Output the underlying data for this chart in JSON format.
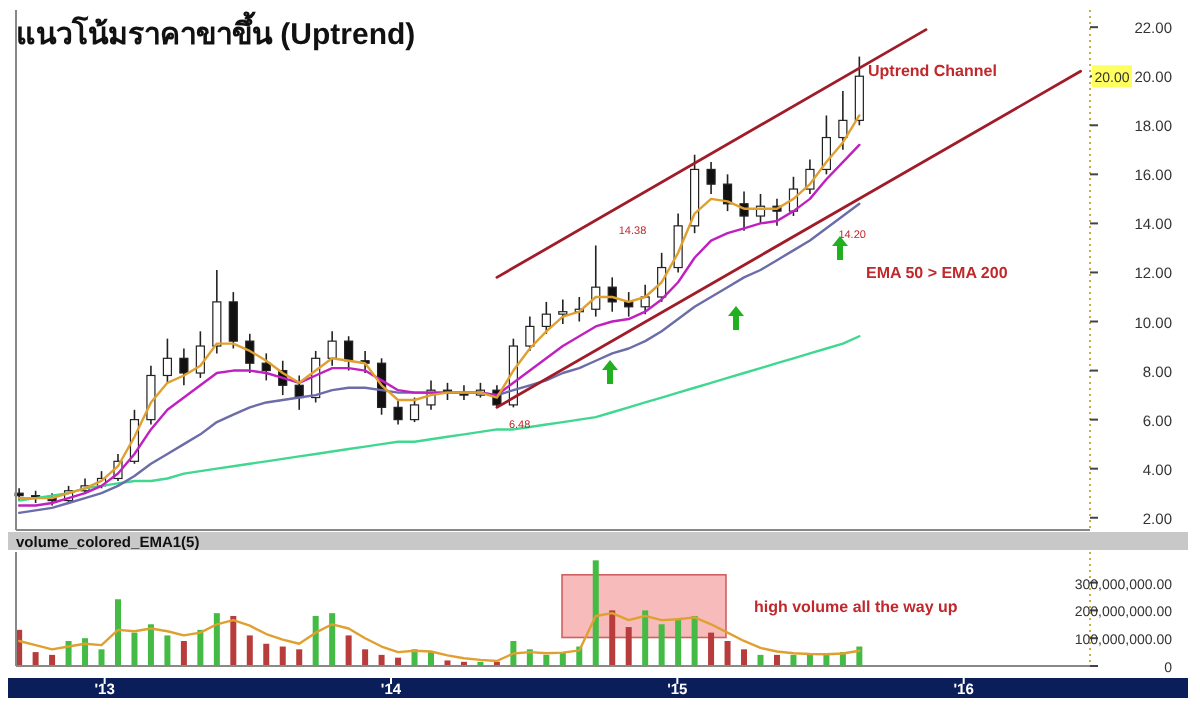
{
  "chart_data": [
    {
      "type": "candlestick",
      "title": "แนวโน้มราคาขาขึ้น (Uptrend)",
      "x": [
        "2012-09-14",
        "2012-10-05",
        "2012-10-26",
        "2012-11-16",
        "2012-12-07",
        "2012-12-28",
        "2013-01-18",
        "2013-02-08",
        "2013-03-01",
        "2013-03-22",
        "2013-04-12",
        "2013-05-03",
        "2013-05-24",
        "2013-06-14",
        "2013-07-05",
        "2013-07-26",
        "2013-08-16",
        "2013-09-06",
        "2013-09-27",
        "2013-10-18",
        "2013-11-08",
        "2013-11-29",
        "2013-12-20",
        "2014-01-10",
        "2014-01-31",
        "2014-02-21",
        "2014-03-14",
        "2014-04-04",
        "2014-04-25",
        "2014-05-16",
        "2014-06-06",
        "2014-06-27",
        "2014-07-18",
        "2014-08-08",
        "2014-08-29",
        "2014-09-19",
        "2014-10-10",
        "2014-10-31",
        "2014-11-21",
        "2014-12-12",
        "2015-01-02",
        "2015-01-23",
        "2015-02-13",
        "2015-03-06",
        "2015-03-27",
        "2015-04-17",
        "2015-05-08",
        "2015-05-29",
        "2015-06-19",
        "2015-07-10",
        "2015-07-31",
        "2015-08-21"
      ],
      "ohlc": [
        [
          3.0,
          3.2,
          2.7,
          2.9
        ],
        [
          2.9,
          3.1,
          2.6,
          2.8
        ],
        [
          2.8,
          3.0,
          2.5,
          2.7
        ],
        [
          2.7,
          3.3,
          2.6,
          3.1
        ],
        [
          3.1,
          3.6,
          3.0,
          3.3
        ],
        [
          3.3,
          3.9,
          3.2,
          3.6
        ],
        [
          3.6,
          4.6,
          3.5,
          4.3
        ],
        [
          4.3,
          6.4,
          4.2,
          6.0
        ],
        [
          6.0,
          8.2,
          5.8,
          7.8
        ],
        [
          7.8,
          9.3,
          7.5,
          8.5
        ],
        [
          8.5,
          8.9,
          7.4,
          7.9
        ],
        [
          7.9,
          9.6,
          7.7,
          9.0
        ],
        [
          9.0,
          12.1,
          8.7,
          10.8
        ],
        [
          10.8,
          11.2,
          8.9,
          9.2
        ],
        [
          9.2,
          9.5,
          7.9,
          8.3
        ],
        [
          8.3,
          8.7,
          7.6,
          8.0
        ],
        [
          8.0,
          8.4,
          7.0,
          7.4
        ],
        [
          7.4,
          7.8,
          6.4,
          6.9
        ],
        [
          6.9,
          8.8,
          6.7,
          8.5
        ],
        [
          8.5,
          9.6,
          8.2,
          9.2
        ],
        [
          9.2,
          9.4,
          8.0,
          8.4
        ],
        [
          8.4,
          8.8,
          7.9,
          8.3
        ],
        [
          8.3,
          8.5,
          6.2,
          6.5
        ],
        [
          6.5,
          6.8,
          5.8,
          6.0
        ],
        [
          6.0,
          6.9,
          5.9,
          6.6
        ],
        [
          6.6,
          7.6,
          6.4,
          7.2
        ],
        [
          7.2,
          7.5,
          6.8,
          7.1
        ],
        [
          7.1,
          7.4,
          6.8,
          7.0
        ],
        [
          7.0,
          7.5,
          6.9,
          7.2
        ],
        [
          7.2,
          7.4,
          6.48,
          6.6
        ],
        [
          6.6,
          9.3,
          6.5,
          9.0
        ],
        [
          9.0,
          10.2,
          8.8,
          9.8
        ],
        [
          9.8,
          10.8,
          9.5,
          10.3
        ],
        [
          10.3,
          10.9,
          9.9,
          10.4
        ],
        [
          10.4,
          11.0,
          10.0,
          10.5
        ],
        [
          10.5,
          13.1,
          10.2,
          11.4
        ],
        [
          11.4,
          11.8,
          10.4,
          10.8
        ],
        [
          10.8,
          11.2,
          10.2,
          10.6
        ],
        [
          10.6,
          11.5,
          10.3,
          11.0
        ],
        [
          11.0,
          12.8,
          10.8,
          12.2
        ],
        [
          12.2,
          14.4,
          12.0,
          13.9
        ],
        [
          13.9,
          16.8,
          13.6,
          16.2
        ],
        [
          16.2,
          16.5,
          15.2,
          15.6
        ],
        [
          15.6,
          16.0,
          14.5,
          14.8
        ],
        [
          14.8,
          15.3,
          13.7,
          14.3
        ],
        [
          14.3,
          15.2,
          14.0,
          14.7
        ],
        [
          14.7,
          15.0,
          13.9,
          14.5
        ],
        [
          14.5,
          15.9,
          14.3,
          15.4
        ],
        [
          15.4,
          16.6,
          15.2,
          16.2
        ],
        [
          16.2,
          18.4,
          16.0,
          17.5
        ],
        [
          17.5,
          19.4,
          17.0,
          18.2
        ],
        [
          18.2,
          20.8,
          18.0,
          20.0
        ]
      ],
      "series": [
        {
          "type": "line",
          "color": "#40d890",
          "values": [
            2.7,
            2.8,
            2.9,
            3.0,
            3.2,
            3.3,
            3.4,
            3.5,
            3.5,
            3.6,
            3.8,
            3.9,
            4.0,
            4.1,
            4.2,
            4.3,
            4.4,
            4.5,
            4.6,
            4.7,
            4.8,
            4.9,
            5.0,
            5.1,
            5.1,
            5.2,
            5.3,
            5.4,
            5.5,
            5.6,
            5.6,
            5.7,
            5.8,
            5.9,
            6.0,
            6.1,
            6.3,
            6.5,
            6.7,
            6.9,
            7.1,
            7.3,
            7.5,
            7.7,
            7.9,
            8.1,
            8.3,
            8.5,
            8.7,
            8.9,
            9.1,
            9.4
          ]
        },
        {
          "type": "line",
          "color": "#6c6ca8",
          "values": [
            2.2,
            2.3,
            2.4,
            2.6,
            2.8,
            3.0,
            3.3,
            3.7,
            4.2,
            4.6,
            5.0,
            5.4,
            5.9,
            6.2,
            6.5,
            6.7,
            6.8,
            6.9,
            7.0,
            7.2,
            7.3,
            7.3,
            7.2,
            7.1,
            7.1,
            7.1,
            7.1,
            7.1,
            7.1,
            7.0,
            7.2,
            7.4,
            7.6,
            7.9,
            8.1,
            8.4,
            8.7,
            8.9,
            9.2,
            9.6,
            10.1,
            10.6,
            11.0,
            11.4,
            11.8,
            12.1,
            12.5,
            12.9,
            13.3,
            13.8,
            14.3,
            14.8
          ]
        },
        {
          "type": "line",
          "color": "#c020c0",
          "values": [
            2.5,
            2.5,
            2.6,
            2.8,
            3.0,
            3.3,
            3.8,
            4.6,
            5.6,
            6.4,
            6.9,
            7.4,
            7.9,
            8.0,
            8.0,
            7.9,
            7.7,
            7.5,
            7.8,
            8.1,
            8.1,
            8.0,
            7.6,
            7.2,
            7.1,
            7.1,
            7.1,
            7.1,
            7.1,
            7.0,
            7.5,
            8.0,
            8.5,
            9.0,
            9.4,
            9.8,
            10.0,
            10.1,
            10.4,
            10.9,
            11.6,
            12.6,
            13.3,
            13.6,
            13.8,
            14.0,
            14.1,
            14.5,
            15.0,
            15.8,
            16.5,
            17.2
          ]
        },
        {
          "type": "line",
          "color": "#e0a030",
          "values": [
            2.8,
            2.8,
            2.8,
            3.0,
            3.2,
            3.5,
            4.1,
            5.3,
            6.7,
            7.5,
            7.8,
            8.2,
            9.1,
            9.1,
            8.8,
            8.4,
            7.9,
            7.5,
            8.0,
            8.5,
            8.4,
            8.3,
            7.4,
            6.8,
            6.8,
            7.0,
            7.1,
            7.1,
            7.1,
            6.9,
            8.0,
            8.9,
            9.6,
            10.2,
            10.4,
            11.0,
            11.0,
            10.8,
            11.0,
            11.6,
            12.8,
            14.4,
            15.0,
            14.9,
            14.6,
            14.6,
            14.6,
            15.0,
            15.6,
            16.5,
            17.3,
            18.4
          ]
        },
        {
          "type": "line",
          "color": "#a01c28",
          "x": [
            "2014-05-16",
            "2015-11-14"
          ],
          "values": [
            11.8,
            21.9
          ]
        },
        {
          "type": "line",
          "color": "#a01c28",
          "x": [
            "2014-05-16",
            "2016-05-29"
          ],
          "values": [
            6.5,
            20.2
          ]
        }
      ],
      "xlim": [
        "2012-09-10",
        "2016-06-10"
      ],
      "ylim": [
        1.5,
        22.7
      ],
      "yticks": [
        {
          "value": 2,
          "label": "2.00"
        },
        {
          "value": 4,
          "label": "4.00"
        },
        {
          "value": 6,
          "label": "6.00"
        },
        {
          "value": 8,
          "label": "8.00"
        },
        {
          "value": 10,
          "label": "10.00"
        },
        {
          "value": 12,
          "label": "12.00"
        },
        {
          "value": 14,
          "label": "14.00"
        },
        {
          "value": 16,
          "label": "16.00"
        },
        {
          "value": 18,
          "label": "18.00"
        },
        {
          "value": 20,
          "label": "20.00"
        },
        {
          "value": 22,
          "label": "22.00"
        }
      ],
      "tick_labels": "y",
      "annotations": [
        "Uptrend Channel",
        "EMA 50 > EMA 200",
        {
          "text": "14.38",
          "x": "2014-10-03",
          "y": 14.38
        },
        {
          "text": "6.48",
          "x": "2014-05-16",
          "y": 6.48
        },
        {
          "text": "14.20",
          "x": "2015-07-10",
          "y": 14.2
        },
        {
          "text": "20.00",
          "y": 20
        }
      ]
    },
    {
      "type": "bar",
      "title": "volume_colored_EMA1(5)",
      "x": [
        "2012-09-14",
        "2012-10-05",
        "2012-10-26",
        "2012-11-16",
        "2012-12-07",
        "2012-12-28",
        "2013-01-18",
        "2013-02-08",
        "2013-03-01",
        "2013-03-22",
        "2013-04-12",
        "2013-05-03",
        "2013-05-24",
        "2013-06-14",
        "2013-07-05",
        "2013-07-26",
        "2013-08-16",
        "2013-09-06",
        "2013-09-27",
        "2013-10-18",
        "2013-11-08",
        "2013-11-29",
        "2013-12-20",
        "2014-01-10",
        "2014-01-31",
        "2014-02-21",
        "2014-03-14",
        "2014-04-04",
        "2014-04-25",
        "2014-05-16",
        "2014-06-06",
        "2014-06-27",
        "2014-07-18",
        "2014-08-08",
        "2014-08-29",
        "2014-09-19",
        "2014-10-10",
        "2014-10-31",
        "2014-11-21",
        "2014-12-12",
        "2015-01-02",
        "2015-01-23",
        "2015-02-13",
        "2015-03-06",
        "2015-03-27",
        "2015-04-17",
        "2015-05-08",
        "2015-05-29",
        "2015-06-19",
        "2015-07-10",
        "2015-07-31",
        "2015-08-21"
      ],
      "series": [
        {
          "type": "bar",
          "colors": [
            "#b83c3c",
            "#b83c3c",
            "#b83c3c",
            "#44bb44",
            "#44bb44",
            "#44bb44",
            "#44bb44",
            "#44bb44",
            "#44bb44",
            "#44bb44",
            "#b83c3c",
            "#44bb44",
            "#44bb44",
            "#b83c3c",
            "#b83c3c",
            "#b83c3c",
            "#b83c3c",
            "#b83c3c",
            "#44bb44",
            "#44bb44",
            "#b83c3c",
            "#b83c3c",
            "#b83c3c",
            "#b83c3c",
            "#44bb44",
            "#44bb44",
            "#b83c3c",
            "#b83c3c",
            "#44bb44",
            "#b83c3c",
            "#44bb44",
            "#44bb44",
            "#44bb44",
            "#44bb44",
            "#44bb44",
            "#44bb44",
            "#b83c3c",
            "#b83c3c",
            "#44bb44",
            "#44bb44",
            "#44bb44",
            "#44bb44",
            "#b83c3c",
            "#b83c3c",
            "#b83c3c",
            "#44bb44",
            "#b83c3c",
            "#44bb44",
            "#44bb44",
            "#44bb44",
            "#44bb44",
            "#44bb44"
          ],
          "values": [
            130000000,
            50000000,
            40000000,
            90000000,
            100000000,
            60000000,
            240000000,
            120000000,
            150000000,
            110000000,
            90000000,
            130000000,
            190000000,
            180000000,
            110000000,
            80000000,
            70000000,
            60000000,
            180000000,
            190000000,
            110000000,
            60000000,
            40000000,
            30000000,
            60000000,
            50000000,
            20000000,
            15000000,
            15000000,
            15000000,
            90000000,
            60000000,
            40000000,
            50000000,
            70000000,
            380000000,
            200000000,
            140000000,
            200000000,
            150000000,
            170000000,
            180000000,
            120000000,
            90000000,
            60000000,
            40000000,
            40000000,
            40000000,
            40000000,
            40000000,
            50000000,
            70000000
          ]
        },
        {
          "type": "line",
          "color": "#e0a030",
          "values": [
            90000000,
            75000000,
            60000000,
            70000000,
            80000000,
            75000000,
            130000000,
            125000000,
            135000000,
            125000000,
            110000000,
            120000000,
            150000000,
            165000000,
            145000000,
            115000000,
            95000000,
            80000000,
            120000000,
            150000000,
            135000000,
            100000000,
            70000000,
            50000000,
            55000000,
            52000000,
            38000000,
            28000000,
            22000000,
            18000000,
            45000000,
            50000000,
            46000000,
            48000000,
            56000000,
            180000000,
            190000000,
            165000000,
            180000000,
            165000000,
            168000000,
            175000000,
            150000000,
            120000000,
            90000000,
            65000000,
            52000000,
            46000000,
            43000000,
            42000000,
            45000000,
            55000000
          ]
        }
      ],
      "xlim": [
        "2012-09-10",
        "2016-06-10"
      ],
      "ylim": [
        0,
        410000000
      ],
      "xticks": [
        {
          "value": "2013-01-01",
          "label": "'13"
        },
        {
          "value": "2014-01-01",
          "label": "'14"
        },
        {
          "value": "2015-01-01",
          "label": "'15"
        },
        {
          "value": "2016-01-01",
          "label": "'16"
        }
      ],
      "yticks": [
        {
          "value": 0,
          "label": "0"
        },
        {
          "value": 100000000,
          "label": "100,000,000.00"
        },
        {
          "value": 200000000,
          "label": "200,000,000.00"
        },
        {
          "value": 300000000,
          "label": "300,000,000.00"
        }
      ],
      "bands": [
        {
          "axis": "x",
          "from": "2014-08-07",
          "to": "2015-03-04",
          "label": "high volume all the way up",
          "color": "#f4a4a4"
        }
      ]
    }
  ]
}
